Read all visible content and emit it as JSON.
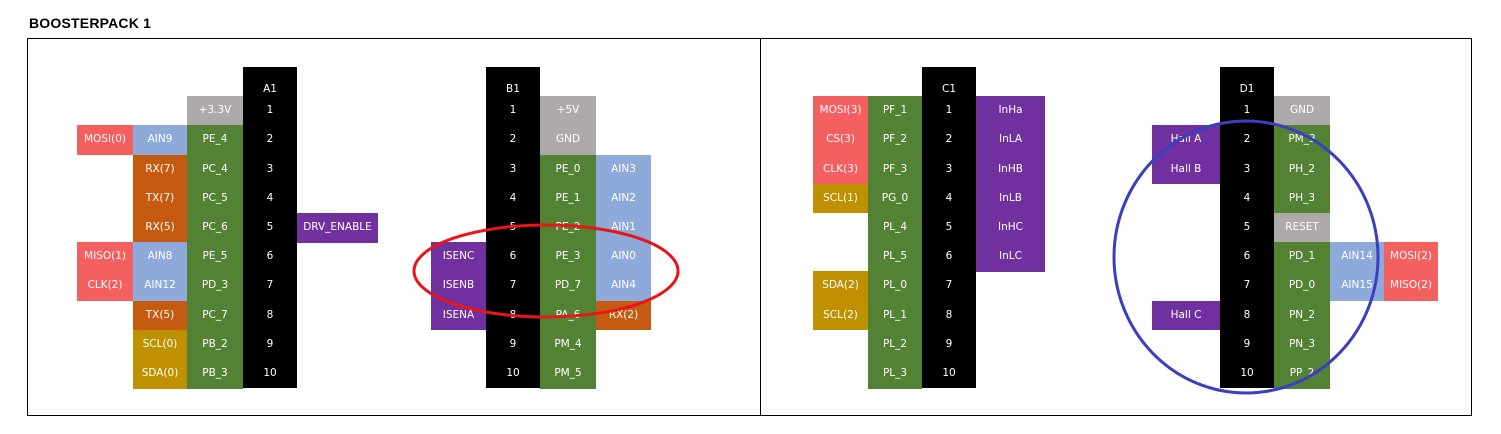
{
  "title": "BOOSTERPACK 1",
  "colors": {
    "salmon": "#f4605f",
    "lightblue": "#8eaadb",
    "orange": "#c55a11",
    "green": "#548235",
    "gray": "#aeaaaa",
    "gold": "#bf9000",
    "purple": "#7030a0",
    "black": "#000000",
    "red_ellipse": "#e8151b",
    "blue_ellipse": "#3b3fbf"
  },
  "headers": {
    "A": {
      "label": "A1"
    },
    "B": {
      "label": "B1"
    },
    "C": {
      "label": "C1"
    },
    "D": {
      "label": "D1"
    }
  },
  "pins": [
    "1",
    "2",
    "3",
    "4",
    "5",
    "6",
    "7",
    "8",
    "9",
    "10"
  ],
  "A": {
    "left": [
      [
        "",
        "",
        "+3.3V"
      ],
      [
        "MOSI(0)",
        "AIN9",
        "PE_4"
      ],
      [
        "",
        "RX(7)",
        "PC_4"
      ],
      [
        "",
        "TX(7)",
        "PC_5"
      ],
      [
        "",
        "RX(5)",
        "PC_6"
      ],
      [
        "MISO(1)",
        "AIN8",
        "PE_5"
      ],
      [
        "CLK(2)",
        "AIN12",
        "PD_3"
      ],
      [
        "",
        "TX(5)",
        "PC_7"
      ],
      [
        "",
        "SCL(0)",
        "PB_2"
      ],
      [
        "",
        "SDA(0)",
        "PB_3"
      ]
    ],
    "right": [
      "",
      "",
      "",
      "",
      "DRV_ENABLE",
      "",
      "",
      "",
      "",
      ""
    ]
  },
  "B": {
    "left": [
      "",
      "",
      "",
      "",
      "",
      "ISENC",
      "ISENB",
      "ISENA",
      "",
      ""
    ],
    "right": [
      [
        "+5V",
        ""
      ],
      [
        "GND",
        ""
      ],
      [
        "PE_0",
        "AIN3"
      ],
      [
        "PE_1",
        "AIN2"
      ],
      [
        "PE_2",
        "AIN1"
      ],
      [
        "PE_3",
        "AIN0"
      ],
      [
        "PD_7",
        "AIN4"
      ],
      [
        "PA_6",
        "RX(2)"
      ],
      [
        "PM_4",
        ""
      ],
      [
        "PM_5",
        ""
      ]
    ]
  },
  "C": {
    "left": [
      [
        "MOSI(3)",
        "PF_1"
      ],
      [
        "CS(3)",
        "PF_2"
      ],
      [
        "CLK(3)",
        "PF_3"
      ],
      [
        "SCL(1)",
        "PG_0"
      ],
      [
        "",
        "PL_4"
      ],
      [
        "",
        "PL_5"
      ],
      [
        "SDA(2)",
        "PL_0"
      ],
      [
        "SCL(2)",
        "PL_1"
      ],
      [
        "",
        "PL_2"
      ],
      [
        "",
        "PL_3"
      ]
    ],
    "right": [
      "InHa",
      "InLA",
      "InHB",
      "InLB",
      "InHC",
      "InLC",
      "",
      "",
      "",
      ""
    ]
  },
  "D": {
    "left": [
      "",
      "Hall A",
      "Hall B",
      "",
      "",
      "",
      "",
      "Hall C",
      "",
      ""
    ],
    "right": [
      [
        "GND",
        "",
        ""
      ],
      [
        "PM_3",
        "",
        ""
      ],
      [
        "PH_2",
        "",
        ""
      ],
      [
        "PH_3",
        "",
        ""
      ],
      [
        "RESET",
        "",
        ""
      ],
      [
        "PD_1",
        "AIN14",
        "MOSI(2)"
      ],
      [
        "PD_0",
        "AIN15",
        "MISO(2)"
      ],
      [
        "PN_2",
        "",
        ""
      ],
      [
        "PN_3",
        "",
        ""
      ],
      [
        "PP_2",
        "",
        ""
      ]
    ]
  }
}
